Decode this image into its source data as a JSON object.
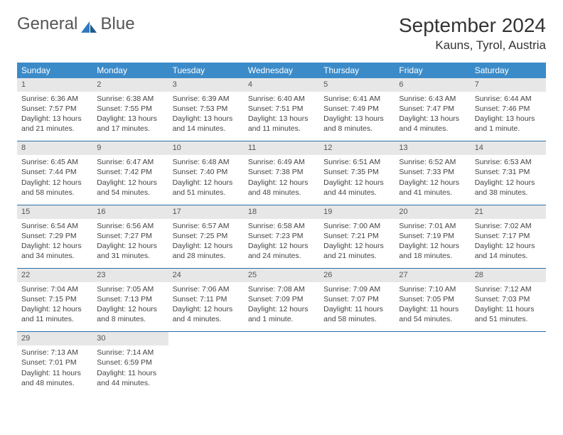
{
  "logo": {
    "text1": "General",
    "text2": "Blue"
  },
  "title": "September 2024",
  "location": "Kauns, Tyrol, Austria",
  "colors": {
    "header_bg": "#3b8bc9",
    "daynum_bg": "#e7e7e7",
    "row_border": "#2a6fa6",
    "logo_blue": "#2f7abf"
  },
  "weekdays": [
    "Sunday",
    "Monday",
    "Tuesday",
    "Wednesday",
    "Thursday",
    "Friday",
    "Saturday"
  ],
  "days": [
    {
      "n": "1",
      "sr": "Sunrise: 6:36 AM",
      "ss": "Sunset: 7:57 PM",
      "dl": "Daylight: 13 hours and 21 minutes."
    },
    {
      "n": "2",
      "sr": "Sunrise: 6:38 AM",
      "ss": "Sunset: 7:55 PM",
      "dl": "Daylight: 13 hours and 17 minutes."
    },
    {
      "n": "3",
      "sr": "Sunrise: 6:39 AM",
      "ss": "Sunset: 7:53 PM",
      "dl": "Daylight: 13 hours and 14 minutes."
    },
    {
      "n": "4",
      "sr": "Sunrise: 6:40 AM",
      "ss": "Sunset: 7:51 PM",
      "dl": "Daylight: 13 hours and 11 minutes."
    },
    {
      "n": "5",
      "sr": "Sunrise: 6:41 AM",
      "ss": "Sunset: 7:49 PM",
      "dl": "Daylight: 13 hours and 8 minutes."
    },
    {
      "n": "6",
      "sr": "Sunrise: 6:43 AM",
      "ss": "Sunset: 7:47 PM",
      "dl": "Daylight: 13 hours and 4 minutes."
    },
    {
      "n": "7",
      "sr": "Sunrise: 6:44 AM",
      "ss": "Sunset: 7:46 PM",
      "dl": "Daylight: 13 hours and 1 minute."
    },
    {
      "n": "8",
      "sr": "Sunrise: 6:45 AM",
      "ss": "Sunset: 7:44 PM",
      "dl": "Daylight: 12 hours and 58 minutes."
    },
    {
      "n": "9",
      "sr": "Sunrise: 6:47 AM",
      "ss": "Sunset: 7:42 PM",
      "dl": "Daylight: 12 hours and 54 minutes."
    },
    {
      "n": "10",
      "sr": "Sunrise: 6:48 AM",
      "ss": "Sunset: 7:40 PM",
      "dl": "Daylight: 12 hours and 51 minutes."
    },
    {
      "n": "11",
      "sr": "Sunrise: 6:49 AM",
      "ss": "Sunset: 7:38 PM",
      "dl": "Daylight: 12 hours and 48 minutes."
    },
    {
      "n": "12",
      "sr": "Sunrise: 6:51 AM",
      "ss": "Sunset: 7:35 PM",
      "dl": "Daylight: 12 hours and 44 minutes."
    },
    {
      "n": "13",
      "sr": "Sunrise: 6:52 AM",
      "ss": "Sunset: 7:33 PM",
      "dl": "Daylight: 12 hours and 41 minutes."
    },
    {
      "n": "14",
      "sr": "Sunrise: 6:53 AM",
      "ss": "Sunset: 7:31 PM",
      "dl": "Daylight: 12 hours and 38 minutes."
    },
    {
      "n": "15",
      "sr": "Sunrise: 6:54 AM",
      "ss": "Sunset: 7:29 PM",
      "dl": "Daylight: 12 hours and 34 minutes."
    },
    {
      "n": "16",
      "sr": "Sunrise: 6:56 AM",
      "ss": "Sunset: 7:27 PM",
      "dl": "Daylight: 12 hours and 31 minutes."
    },
    {
      "n": "17",
      "sr": "Sunrise: 6:57 AM",
      "ss": "Sunset: 7:25 PM",
      "dl": "Daylight: 12 hours and 28 minutes."
    },
    {
      "n": "18",
      "sr": "Sunrise: 6:58 AM",
      "ss": "Sunset: 7:23 PM",
      "dl": "Daylight: 12 hours and 24 minutes."
    },
    {
      "n": "19",
      "sr": "Sunrise: 7:00 AM",
      "ss": "Sunset: 7:21 PM",
      "dl": "Daylight: 12 hours and 21 minutes."
    },
    {
      "n": "20",
      "sr": "Sunrise: 7:01 AM",
      "ss": "Sunset: 7:19 PM",
      "dl": "Daylight: 12 hours and 18 minutes."
    },
    {
      "n": "21",
      "sr": "Sunrise: 7:02 AM",
      "ss": "Sunset: 7:17 PM",
      "dl": "Daylight: 12 hours and 14 minutes."
    },
    {
      "n": "22",
      "sr": "Sunrise: 7:04 AM",
      "ss": "Sunset: 7:15 PM",
      "dl": "Daylight: 12 hours and 11 minutes."
    },
    {
      "n": "23",
      "sr": "Sunrise: 7:05 AM",
      "ss": "Sunset: 7:13 PM",
      "dl": "Daylight: 12 hours and 8 minutes."
    },
    {
      "n": "24",
      "sr": "Sunrise: 7:06 AM",
      "ss": "Sunset: 7:11 PM",
      "dl": "Daylight: 12 hours and 4 minutes."
    },
    {
      "n": "25",
      "sr": "Sunrise: 7:08 AM",
      "ss": "Sunset: 7:09 PM",
      "dl": "Daylight: 12 hours and 1 minute."
    },
    {
      "n": "26",
      "sr": "Sunrise: 7:09 AM",
      "ss": "Sunset: 7:07 PM",
      "dl": "Daylight: 11 hours and 58 minutes."
    },
    {
      "n": "27",
      "sr": "Sunrise: 7:10 AM",
      "ss": "Sunset: 7:05 PM",
      "dl": "Daylight: 11 hours and 54 minutes."
    },
    {
      "n": "28",
      "sr": "Sunrise: 7:12 AM",
      "ss": "Sunset: 7:03 PM",
      "dl": "Daylight: 11 hours and 51 minutes."
    },
    {
      "n": "29",
      "sr": "Sunrise: 7:13 AM",
      "ss": "Sunset: 7:01 PM",
      "dl": "Daylight: 11 hours and 48 minutes."
    },
    {
      "n": "30",
      "sr": "Sunrise: 7:14 AM",
      "ss": "Sunset: 6:59 PM",
      "dl": "Daylight: 11 hours and 44 minutes."
    }
  ]
}
